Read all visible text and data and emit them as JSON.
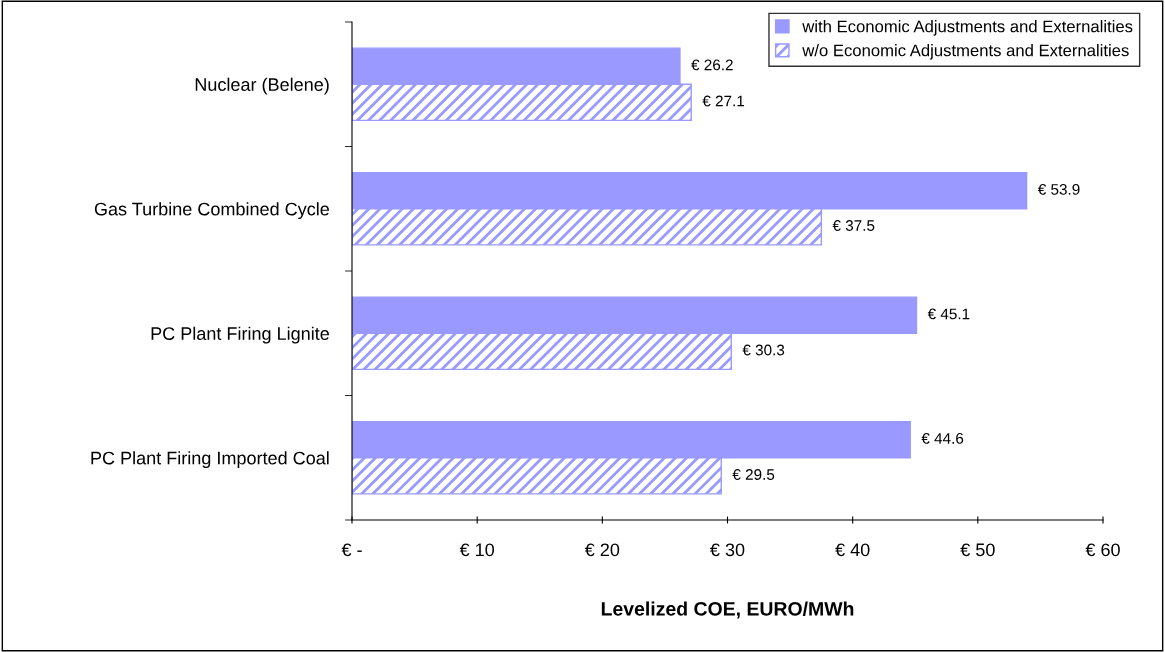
{
  "chart_data": {
    "type": "bar",
    "orientation": "horizontal",
    "xlabel": "Levelized COE, EURO/MWh",
    "categories": [
      "Nuclear (Belene)",
      "Gas Turbine Combined Cycle",
      "PC Plant Firing Lignite",
      "PC Plant Firing Imported Coal"
    ],
    "series": [
      {
        "name": "with Economic Adjustments and Externalities",
        "color": "#9999ff",
        "values": [
          26.2,
          53.9,
          45.1,
          44.6
        ],
        "value_labels": [
          "€ 26.2",
          "€ 53.9",
          "€ 45.1",
          "€ 44.6"
        ]
      },
      {
        "name": "w/o Economic Adjustments and Externalities",
        "color": "#9999ff",
        "values": [
          27.1,
          37.5,
          30.3,
          29.5
        ],
        "value_labels": [
          "€ 27.1",
          "€ 37.5",
          "€ 30.3",
          "€ 29.5"
        ]
      }
    ],
    "xlim": [
      0,
      60
    ],
    "xticks": [
      {
        "value": 0,
        "label": "€ -"
      },
      {
        "value": 10,
        "label": "€ 10"
      },
      {
        "value": 20,
        "label": "€ 20"
      },
      {
        "value": 30,
        "label": "€ 30"
      },
      {
        "value": 40,
        "label": "€ 40"
      },
      {
        "value": 50,
        "label": "€ 50"
      },
      {
        "value": 60,
        "label": "€ 60"
      }
    ],
    "grid": false,
    "legend": "top right"
  }
}
